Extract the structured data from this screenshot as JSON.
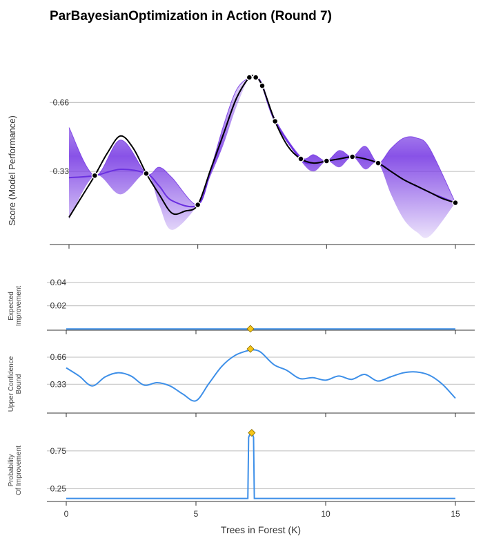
{
  "title": "ParBayesianOptimization in Action (Round 7)",
  "xlabel": "Trees in Forest (K)",
  "x_ticks": [
    0,
    5,
    10,
    15
  ],
  "colors": {
    "band": "#7b3fe4",
    "mean": "#6a2fe0",
    "truth": "#000000",
    "acq_line": "#3d8fe8",
    "marker": "#f5c518",
    "grid": "#c8c8c8"
  },
  "chart_data": [
    {
      "type": "line",
      "name_panel": "score",
      "ylabel": "Score (Model Performance)",
      "y_ticks": [
        0.33,
        0.66
      ],
      "y_tick_labels": [
        "0.33",
        "0.66"
      ],
      "ylim": [
        -0.02,
        0.82
      ],
      "xlim": [
        0,
        15
      ],
      "truth_curve": {
        "x": [
          0,
          0.5,
          1,
          1.5,
          2,
          2.5,
          3,
          3.5,
          4,
          4.5,
          5,
          5.5,
          6,
          6.5,
          7,
          7.25,
          7.5,
          8,
          8.5,
          9,
          9.5,
          10,
          10.5,
          11,
          11.5,
          12,
          12.5,
          13,
          13.5,
          14,
          14.5,
          15
        ],
        "y": [
          0.11,
          0.21,
          0.31,
          0.42,
          0.5,
          0.44,
          0.32,
          0.22,
          0.13,
          0.14,
          0.17,
          0.34,
          0.51,
          0.68,
          0.78,
          0.78,
          0.74,
          0.57,
          0.45,
          0.39,
          0.37,
          0.38,
          0.39,
          0.4,
          0.39,
          0.37,
          0.33,
          0.29,
          0.26,
          0.23,
          0.2,
          0.18
        ]
      },
      "mean_curve": {
        "x": [
          0,
          1,
          2,
          3,
          3.5,
          4,
          5,
          5.5,
          6,
          6.5,
          7,
          7.25,
          7.5,
          8,
          9,
          9.5,
          10,
          10.5,
          11,
          12,
          12.5,
          13,
          14,
          15
        ],
        "y": [
          0.3,
          0.31,
          0.34,
          0.32,
          0.26,
          0.19,
          0.17,
          0.33,
          0.51,
          0.68,
          0.78,
          0.78,
          0.74,
          0.57,
          0.39,
          0.37,
          0.38,
          0.39,
          0.4,
          0.37,
          0.33,
          0.29,
          0.23,
          0.18
        ]
      },
      "band_upper": {
        "x": [
          0,
          1,
          2,
          3,
          3.5,
          4,
          5,
          5.5,
          6,
          6.5,
          7,
          7.25,
          7.5,
          8,
          9,
          9.5,
          10,
          10.5,
          11,
          11.5,
          12,
          12.5,
          13,
          13.5,
          14,
          15
        ],
        "y": [
          0.54,
          0.31,
          0.48,
          0.32,
          0.35,
          0.3,
          0.17,
          0.34,
          0.55,
          0.72,
          0.78,
          0.78,
          0.75,
          0.58,
          0.4,
          0.41,
          0.38,
          0.43,
          0.4,
          0.45,
          0.37,
          0.44,
          0.49,
          0.49,
          0.44,
          0.18
        ]
      },
      "band_lower": {
        "x": [
          0,
          1,
          2,
          3,
          3.5,
          4,
          5,
          5.5,
          6,
          6.5,
          7,
          7.25,
          7.5,
          8,
          9,
          9.5,
          10,
          10.5,
          11,
          11.5,
          12,
          12.5,
          13,
          13.5,
          14,
          15
        ],
        "y": [
          0.1,
          0.31,
          0.22,
          0.32,
          0.17,
          0.05,
          0.17,
          0.31,
          0.46,
          0.64,
          0.78,
          0.78,
          0.73,
          0.56,
          0.38,
          0.33,
          0.38,
          0.35,
          0.4,
          0.34,
          0.37,
          0.22,
          0.1,
          0.04,
          0.02,
          0.18
        ]
      },
      "points": {
        "x": [
          1,
          3,
          5,
          7,
          7.25,
          7.5,
          8,
          9,
          10,
          11,
          12,
          15
        ],
        "y": [
          0.31,
          0.32,
          0.17,
          0.78,
          0.78,
          0.74,
          0.57,
          0.39,
          0.38,
          0.4,
          0.37,
          0.18
        ]
      }
    },
    {
      "type": "line",
      "name_panel": "ei",
      "ylabel_lines": [
        "Expected",
        "Improvement"
      ],
      "y_ticks": [
        0.02,
        0.04
      ],
      "y_tick_labels": [
        "0.02",
        "0.04"
      ],
      "ylim": [
        -0.001,
        0.05
      ],
      "xlim": [
        0,
        15
      ],
      "x": [
        0,
        15
      ],
      "y": [
        0,
        0
      ],
      "best": {
        "x": 7.1,
        "y": 0.0002
      }
    },
    {
      "type": "line",
      "name_panel": "ucb",
      "ylabel_lines": [
        "Upper Confidence",
        "Bound"
      ],
      "y_ticks": [
        0.33,
        0.66
      ],
      "y_tick_labels": [
        "0.33",
        "0.66"
      ],
      "ylim": [
        -0.02,
        0.82
      ],
      "xlim": [
        0,
        15
      ],
      "x": [
        0,
        0.5,
        1,
        1.5,
        2,
        2.5,
        3,
        3.5,
        4,
        4.5,
        5,
        5.5,
        6,
        6.5,
        7,
        7.2,
        7.5,
        8,
        8.5,
        9,
        9.5,
        10,
        10.5,
        11,
        11.5,
        12,
        12.5,
        13,
        13.5,
        14,
        14.5,
        15
      ],
      "y": [
        0.53,
        0.43,
        0.31,
        0.42,
        0.47,
        0.43,
        0.32,
        0.35,
        0.31,
        0.21,
        0.13,
        0.34,
        0.55,
        0.68,
        0.74,
        0.75,
        0.72,
        0.57,
        0.5,
        0.4,
        0.41,
        0.38,
        0.43,
        0.39,
        0.45,
        0.37,
        0.42,
        0.47,
        0.48,
        0.44,
        0.33,
        0.16
      ],
      "best": {
        "x": 7.1,
        "y": 0.76
      }
    },
    {
      "type": "line",
      "name_panel": "poi",
      "ylabel_lines": [
        "Probability",
        "Of Improvement"
      ],
      "y_ticks": [
        0.25,
        0.75
      ],
      "y_tick_labels": [
        "0.25",
        "0.75"
      ],
      "ylim": [
        0.08,
        1.05
      ],
      "xlim": [
        0,
        15
      ],
      "x": [
        0,
        6.95,
        7.0,
        7.03,
        7.08,
        7.13,
        7.18,
        7.22,
        7.25,
        15
      ],
      "y": [
        0.12,
        0.12,
        0.12,
        0.93,
        0.97,
        0.96,
        0.97,
        0.93,
        0.12,
        0.12
      ],
      "best": {
        "x": 7.15,
        "y": 0.99
      }
    }
  ]
}
